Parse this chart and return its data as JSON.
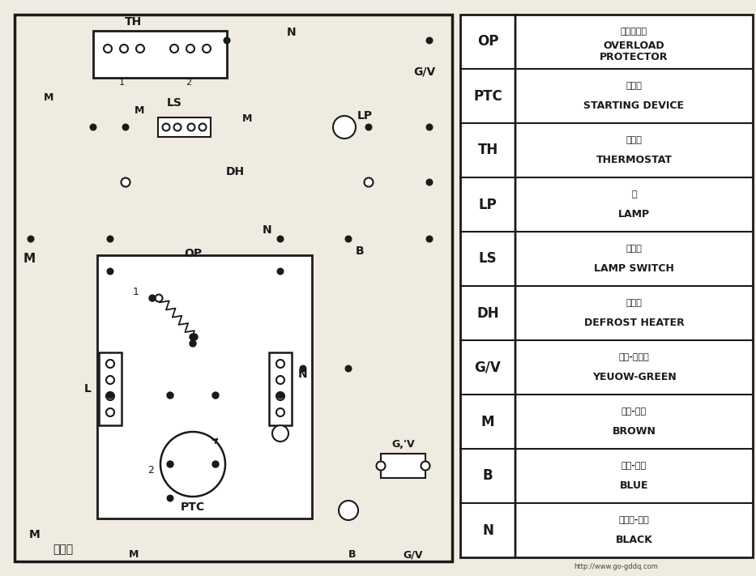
{
  "bg_color": "#f0ebe0",
  "line_color": "#1a1a1a",
  "table_entries": [
    {
      "symbol": "OP",
      "cn": "过载保护器",
      "en": "OVERLOAD\nPROTECTOR"
    },
    {
      "symbol": "PTC",
      "cn": "起动器",
      "en": "STARTING DEVICE"
    },
    {
      "symbol": "TH",
      "cn": "温控器",
      "en": "THERMOSTAT"
    },
    {
      "symbol": "LP",
      "cn": "灯",
      "en": "LAMP"
    },
    {
      "symbol": "LS",
      "cn": "灯开关",
      "en": "LAMP SWITCH"
    },
    {
      "symbol": "DH",
      "cn": "除霜器",
      "en": "DEFROST HEATER"
    },
    {
      "symbol": "G/V",
      "cn": "地线-黄綠色",
      "en": "YEUOW-GREEN"
    },
    {
      "symbol": "M",
      "cn": "火线-棕色",
      "en": "BROWN"
    },
    {
      "symbol": "B",
      "cn": "零线-蓝色",
      "en": "BLUE"
    },
    {
      "symbol": "N",
      "cn": "连接线-黑色",
      "en": "BLACK"
    }
  ],
  "url": "http://www.go-gddq.com"
}
